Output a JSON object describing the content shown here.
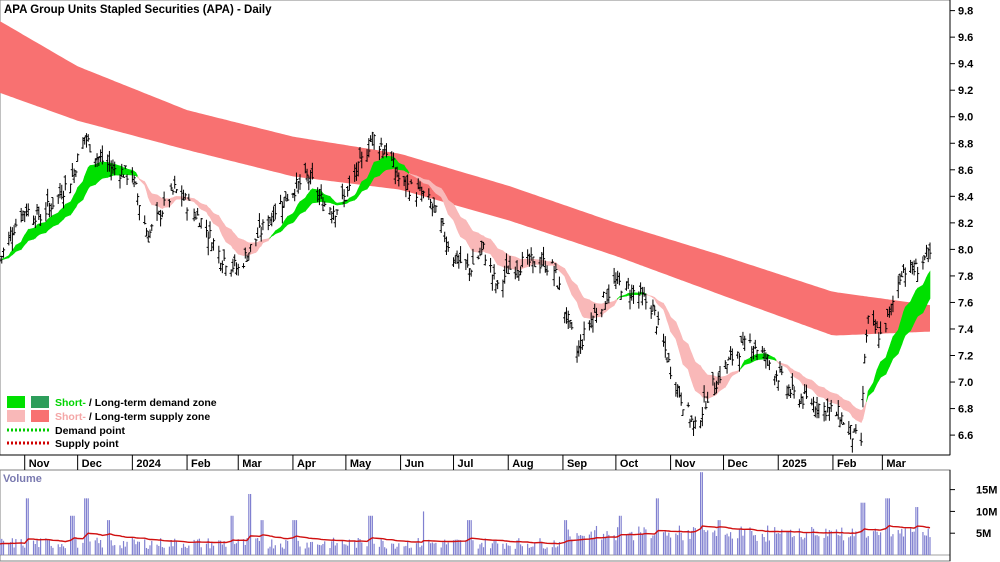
{
  "title": "APA Group Units Stapled Securities (APA) - Daily",
  "colors": {
    "long_supply": "#f87171",
    "short_supply": "#f9b8b8",
    "short_demand": "#00e000",
    "long_demand": "#2e9e5b",
    "overlap": "#f47a20",
    "candle": "#000000",
    "volume_bar": "#8080d0",
    "volume_ma": "#d01010",
    "demand_point": "#00cc00",
    "supply_point": "#d00000",
    "grid": "#999999"
  },
  "legend": {
    "zone_demand_short": "Short-",
    "zone_demand_sep": " / ",
    "zone_demand_long": "Long-term demand zone",
    "zone_supply_short": "Short-",
    "zone_supply_sep": " / ",
    "zone_supply_long": "Long-term supply zone",
    "demand_point": "Demand point",
    "supply_point": "Supply point"
  },
  "volume_label": "Volume",
  "chart_data": {
    "type": "candlestick",
    "price_axis": {
      "ticks": [
        "9.8",
        "9.6",
        "9.4",
        "9.2",
        "9.0",
        "8.8",
        "8.6",
        "8.4",
        "8.2",
        "8.0",
        "7.8",
        "7.6",
        "7.4",
        "7.2",
        "7.0",
        "6.8",
        "6.6"
      ],
      "range": [
        6.45,
        9.88
      ]
    },
    "time_axis": {
      "labels": [
        "Nov",
        "Dec",
        "2024",
        "Feb",
        "Mar",
        "Apr",
        "May",
        "Jun",
        "Jul",
        "Aug",
        "Sep",
        "Oct",
        "Nov",
        "Dec",
        "2025",
        "Feb",
        "Mar"
      ],
      "label_dates": [
        "2023-11-01",
        "2023-12-01",
        "2024-01-01",
        "2024-02-01",
        "2024-03-01",
        "2024-04-01",
        "2024-05-01",
        "2024-06-01",
        "2024-07-01",
        "2024-08-01",
        "2024-09-01",
        "2024-10-01",
        "2024-11-01",
        "2024-12-01",
        "2025-01-01",
        "2025-02-01",
        "2025-03-01"
      ],
      "range": [
        "2023-10-18",
        "2025-03-28"
      ]
    },
    "close_anchors": [
      [
        "2023-10-18",
        7.92
      ],
      [
        "2023-10-25",
        8.15
      ],
      [
        "2023-11-01",
        8.3
      ],
      [
        "2023-11-10",
        8.25
      ],
      [
        "2023-11-20",
        8.4
      ],
      [
        "2023-11-28",
        8.55
      ],
      [
        "2023-12-05",
        8.85
      ],
      [
        "2023-12-12",
        8.7
      ],
      [
        "2023-12-20",
        8.62
      ],
      [
        "2024-01-01",
        8.55
      ],
      [
        "2024-01-10",
        8.1
      ],
      [
        "2024-01-18",
        8.3
      ],
      [
        "2024-01-25",
        8.45
      ],
      [
        "2024-02-01",
        8.35
      ],
      [
        "2024-02-10",
        8.2
      ],
      [
        "2024-02-20",
        7.95
      ],
      [
        "2024-03-01",
        7.85
      ],
      [
        "2024-03-12",
        8.1
      ],
      [
        "2024-03-22",
        8.3
      ],
      [
        "2024-04-01",
        8.45
      ],
      [
        "2024-04-10",
        8.55
      ],
      [
        "2024-04-18",
        8.35
      ],
      [
        "2024-04-25",
        8.3
      ],
      [
        "2024-05-01",
        8.4
      ],
      [
        "2024-05-08",
        8.6
      ],
      [
        "2024-05-16",
        8.85
      ],
      [
        "2024-05-24",
        8.75
      ],
      [
        "2024-06-01",
        8.5
      ],
      [
        "2024-06-08",
        8.45
      ],
      [
        "2024-06-15",
        8.4
      ],
      [
        "2024-06-20",
        8.3
      ],
      [
        "2024-07-01",
        7.95
      ],
      [
        "2024-07-10",
        7.85
      ],
      [
        "2024-07-18",
        8.0
      ],
      [
        "2024-07-26",
        7.7
      ],
      [
        "2024-08-01",
        7.85
      ],
      [
        "2024-08-10",
        7.9
      ],
      [
        "2024-08-20",
        7.9
      ],
      [
        "2024-08-27",
        7.85
      ],
      [
        "2024-09-03",
        7.5
      ],
      [
        "2024-09-09",
        7.22
      ],
      [
        "2024-09-16",
        7.45
      ],
      [
        "2024-09-23",
        7.6
      ],
      [
        "2024-10-01",
        7.75
      ],
      [
        "2024-10-08",
        7.7
      ],
      [
        "2024-10-15",
        7.65
      ],
      [
        "2024-10-22",
        7.55
      ],
      [
        "2024-11-01",
        7.1
      ],
      [
        "2024-11-08",
        6.85
      ],
      [
        "2024-11-15",
        6.65
      ],
      [
        "2024-11-22",
        6.9
      ],
      [
        "2024-12-01",
        7.1
      ],
      [
        "2024-12-10",
        7.25
      ],
      [
        "2024-12-17",
        7.3
      ],
      [
        "2024-12-24",
        7.2
      ],
      [
        "2025-01-01",
        7.05
      ],
      [
        "2025-01-10",
        6.9
      ],
      [
        "2025-01-20",
        6.85
      ],
      [
        "2025-01-28",
        6.8
      ],
      [
        "2025-02-05",
        6.75
      ],
      [
        "2025-02-12",
        6.6
      ],
      [
        "2025-02-17",
        6.55
      ],
      [
        "2025-02-19",
        7.2
      ],
      [
        "2025-02-21",
        7.45
      ],
      [
        "2025-02-28",
        7.35
      ],
      [
        "2025-03-05",
        7.5
      ],
      [
        "2025-03-12",
        7.85
      ],
      [
        "2025-03-20",
        7.85
      ],
      [
        "2025-03-26",
        7.95
      ]
    ],
    "long_supply_zone": [
      [
        "2023-10-18",
        9.18,
        9.72
      ],
      [
        "2023-12-01",
        8.97,
        9.38
      ],
      [
        "2024-02-01",
        8.75,
        9.05
      ],
      [
        "2024-04-01",
        8.55,
        8.85
      ],
      [
        "2024-06-01",
        8.45,
        8.72
      ],
      [
        "2024-08-01",
        8.22,
        8.48
      ],
      [
        "2024-10-01",
        7.95,
        8.2
      ],
      [
        "2024-12-01",
        7.65,
        7.95
      ],
      [
        "2025-02-01",
        7.35,
        7.68
      ],
      [
        "2025-03-28",
        7.38,
        7.58
      ]
    ],
    "volume_axis": {
      "ticks": [
        "15M",
        "10M",
        "5M"
      ],
      "range": [
        0,
        19.5
      ]
    },
    "volume_spikes": [
      [
        "2023-11-03",
        13
      ],
      [
        "2023-11-28",
        9
      ],
      [
        "2023-12-06",
        13
      ],
      [
        "2023-12-18",
        8
      ],
      [
        "2024-02-26",
        9
      ],
      [
        "2024-03-08",
        14
      ],
      [
        "2024-03-15",
        8
      ],
      [
        "2024-04-02",
        8
      ],
      [
        "2024-05-15",
        9
      ],
      [
        "2024-06-15",
        10
      ],
      [
        "2024-07-10",
        8
      ],
      [
        "2024-09-02",
        8
      ],
      [
        "2024-10-04",
        9
      ],
      [
        "2024-10-25",
        13
      ],
      [
        "2024-11-18",
        19
      ],
      [
        "2024-11-29",
        8
      ],
      [
        "2025-02-18",
        12
      ],
      [
        "2025-03-04",
        13
      ],
      [
        "2025-03-21",
        11
      ]
    ]
  }
}
